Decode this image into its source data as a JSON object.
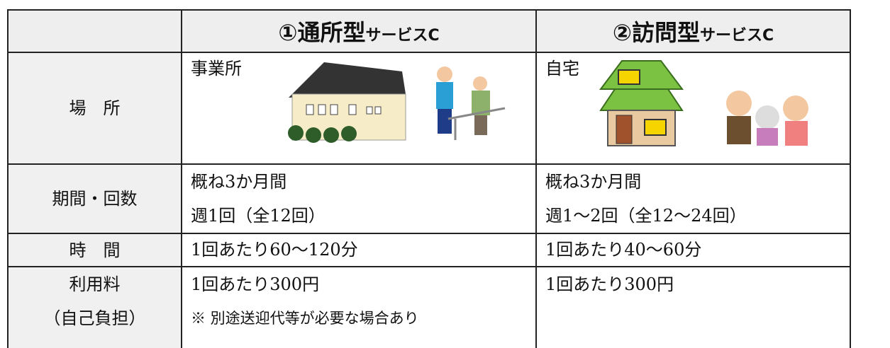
{
  "table": {
    "columns": [
      {
        "title": "①通所型",
        "suffix": "サービスC"
      },
      {
        "title": "②訪問型",
        "suffix": "サービスC"
      }
    ],
    "rows": [
      {
        "label": [
          "場　所"
        ],
        "cells": [
          [
            "事業所"
          ],
          [
            "自宅"
          ]
        ]
      },
      {
        "label": [
          "期間・回数"
        ],
        "cells": [
          [
            "概ね3か月間",
            "週1回（全12回）"
          ],
          [
            "概ね3か月間",
            "週1〜2回（全12〜24回）"
          ]
        ]
      },
      {
        "label": [
          "時　間"
        ],
        "cells": [
          [
            "1回あたり60〜120分"
          ],
          [
            "1回あたり40〜60分"
          ]
        ]
      },
      {
        "label": [
          "利用料",
          "（自己負担）"
        ],
        "cells": [
          [
            "1回あたり300円",
            "※ 別途送迎代等が必要な場合あり"
          ],
          [
            "1回あたり300円"
          ]
        ]
      }
    ]
  }
}
